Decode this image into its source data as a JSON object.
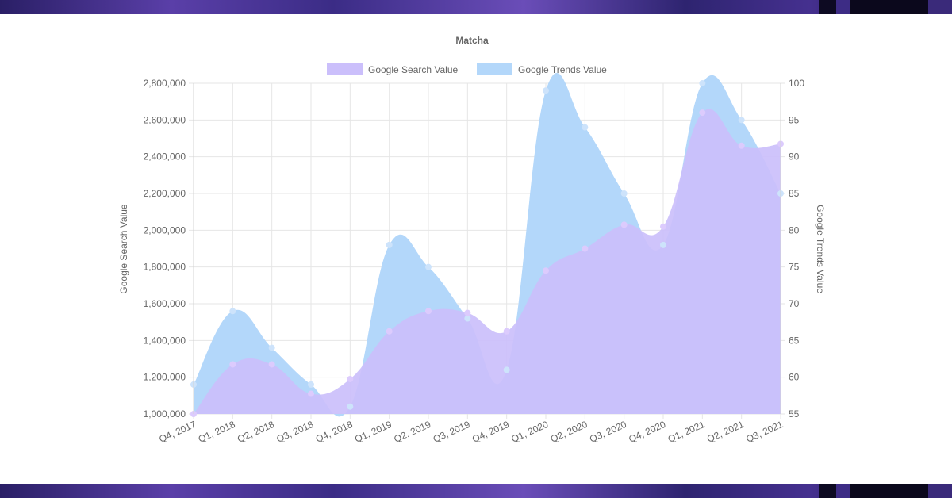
{
  "chart_data": {
    "type": "area",
    "title": "Matcha",
    "categories": [
      "Q4, 2017",
      "Q1, 2018",
      "Q2, 2018",
      "Q3, 2018",
      "Q4, 2018",
      "Q1, 2019",
      "Q2, 2019",
      "Q3, 2019",
      "Q4, 2019",
      "Q1, 2020",
      "Q2, 2020",
      "Q3, 2020",
      "Q4, 2020",
      "Q1, 2021",
      "Q2, 2021",
      "Q3, 2021"
    ],
    "series": [
      {
        "name": "Google Search Value",
        "axis": "left",
        "color": "#cbbffb",
        "point_color": "#dccbfd",
        "values": [
          1000000,
          1270000,
          1270000,
          1110000,
          1190000,
          1450000,
          1560000,
          1550000,
          1450000,
          1780000,
          1900000,
          2030000,
          2020000,
          2640000,
          2460000,
          2470000
        ]
      },
      {
        "name": "Google Trends Value",
        "axis": "right",
        "color": "#b3d7fa",
        "point_color": "#cde3fb",
        "values": [
          59,
          69,
          64,
          59,
          56,
          78,
          75,
          68,
          61,
          99,
          94,
          85,
          78,
          100,
          95,
          85
        ]
      }
    ],
    "ylabel_left": "Google Search Value",
    "ylabel_right": "Google Trends Value",
    "ylim_left": [
      1000000,
      2800000
    ],
    "ylim_right": [
      55,
      100
    ],
    "yticks_left": [
      "1,000,000",
      "1,200,000",
      "1,400,000",
      "1,600,000",
      "1,800,000",
      "2,000,000",
      "2,200,000",
      "2,400,000",
      "2,600,000",
      "2,800,000"
    ],
    "yticks_right": [
      "55",
      "60",
      "65",
      "70",
      "75",
      "80",
      "85",
      "90",
      "95",
      "100"
    ],
    "grid": true,
    "legend_position": "top"
  }
}
